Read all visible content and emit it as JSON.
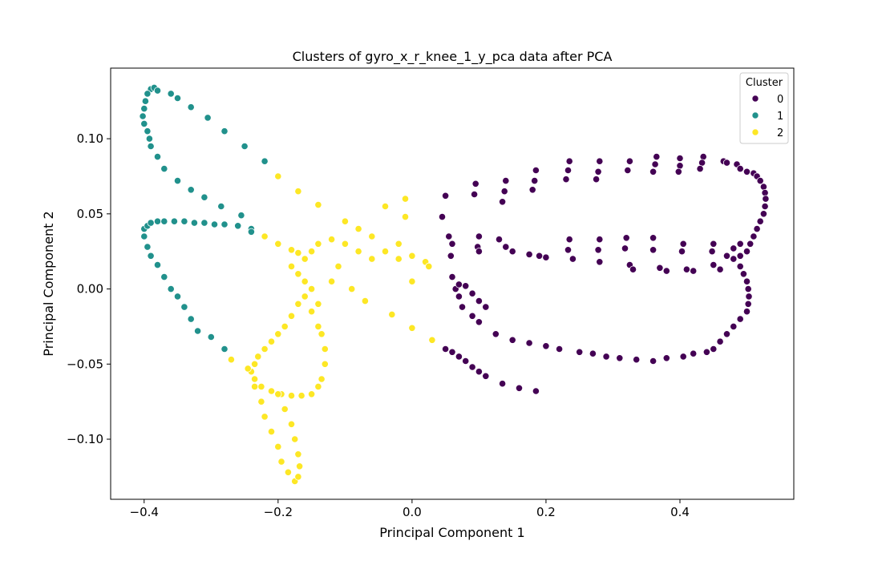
{
  "chart_data": {
    "type": "scatter",
    "title": "Clusters of gyro_x_r_knee_1_y_pca data after PCA",
    "xlabel": "Principal Component 1",
    "ylabel": "Principal Component 2",
    "xlim": [
      -0.45,
      0.57
    ],
    "ylim": [
      -0.14,
      0.147
    ],
    "xticks": [
      -0.4,
      -0.2,
      0.0,
      0.2,
      0.4
    ],
    "xtick_labels": [
      "−0.4",
      "−0.2",
      "0.0",
      "0.2",
      "0.4"
    ],
    "yticks": [
      -0.1,
      -0.05,
      0.0,
      0.05,
      0.1
    ],
    "ytick_labels": [
      "−0.10",
      "−0.05",
      "0.00",
      "0.05",
      "0.10"
    ],
    "grid": false,
    "legend": {
      "title": "Cluster",
      "placement": "top-right"
    },
    "series": [
      {
        "name": "0",
        "color": "#440154",
        "points": [
          [
            0.05,
            0.062
          ],
          [
            0.045,
            0.048
          ],
          [
            0.055,
            0.035
          ],
          [
            0.06,
            0.03
          ],
          [
            0.058,
            0.022
          ],
          [
            0.095,
            0.07
          ],
          [
            0.093,
            0.063
          ],
          [
            0.1,
            0.035
          ],
          [
            0.098,
            0.028
          ],
          [
            0.1,
            0.025
          ],
          [
            0.14,
            0.072
          ],
          [
            0.138,
            0.065
          ],
          [
            0.135,
            0.058
          ],
          [
            0.13,
            0.033
          ],
          [
            0.14,
            0.028
          ],
          [
            0.15,
            0.025
          ],
          [
            0.185,
            0.079
          ],
          [
            0.183,
            0.072
          ],
          [
            0.18,
            0.066
          ],
          [
            0.175,
            0.023
          ],
          [
            0.19,
            0.022
          ],
          [
            0.2,
            0.021
          ],
          [
            0.235,
            0.085
          ],
          [
            0.233,
            0.079
          ],
          [
            0.23,
            0.073
          ],
          [
            0.235,
            0.033
          ],
          [
            0.233,
            0.026
          ],
          [
            0.24,
            0.02
          ],
          [
            0.28,
            0.085
          ],
          [
            0.278,
            0.078
          ],
          [
            0.275,
            0.073
          ],
          [
            0.28,
            0.033
          ],
          [
            0.278,
            0.026
          ],
          [
            0.28,
            0.018
          ],
          [
            0.325,
            0.085
          ],
          [
            0.322,
            0.079
          ],
          [
            0.32,
            0.034
          ],
          [
            0.318,
            0.027
          ],
          [
            0.325,
            0.016
          ],
          [
            0.33,
            0.013
          ],
          [
            0.365,
            0.088
          ],
          [
            0.363,
            0.083
          ],
          [
            0.36,
            0.078
          ],
          [
            0.36,
            0.034
          ],
          [
            0.36,
            0.026
          ],
          [
            0.37,
            0.014
          ],
          [
            0.38,
            0.012
          ],
          [
            0.4,
            0.087
          ],
          [
            0.4,
            0.082
          ],
          [
            0.398,
            0.078
          ],
          [
            0.405,
            0.03
          ],
          [
            0.403,
            0.025
          ],
          [
            0.41,
            0.013
          ],
          [
            0.42,
            0.012
          ],
          [
            0.435,
            0.088
          ],
          [
            0.433,
            0.084
          ],
          [
            0.43,
            0.08
          ],
          [
            0.45,
            0.03
          ],
          [
            0.448,
            0.025
          ],
          [
            0.45,
            0.016
          ],
          [
            0.46,
            0.013
          ],
          [
            0.465,
            0.085
          ],
          [
            0.47,
            0.084
          ],
          [
            0.485,
            0.083
          ],
          [
            0.49,
            0.08
          ],
          [
            0.5,
            0.078
          ],
          [
            0.51,
            0.077
          ],
          [
            0.515,
            0.075
          ],
          [
            0.52,
            0.072
          ],
          [
            0.525,
            0.068
          ],
          [
            0.527,
            0.064
          ],
          [
            0.528,
            0.06
          ],
          [
            0.527,
            0.055
          ],
          [
            0.525,
            0.05
          ],
          [
            0.52,
            0.045
          ],
          [
            0.515,
            0.04
          ],
          [
            0.51,
            0.035
          ],
          [
            0.505,
            0.03
          ],
          [
            0.5,
            0.025
          ],
          [
            0.49,
            0.022
          ],
          [
            0.48,
            0.02
          ],
          [
            0.47,
            0.022
          ],
          [
            0.48,
            0.027
          ],
          [
            0.49,
            0.03
          ],
          [
            0.49,
            0.015
          ],
          [
            0.495,
            0.01
          ],
          [
            0.5,
            0.005
          ],
          [
            0.502,
            0.0
          ],
          [
            0.503,
            -0.005
          ],
          [
            0.502,
            -0.01
          ],
          [
            0.5,
            -0.015
          ],
          [
            0.49,
            -0.02
          ],
          [
            0.48,
            -0.025
          ],
          [
            0.47,
            -0.03
          ],
          [
            0.46,
            -0.035
          ],
          [
            0.45,
            -0.04
          ],
          [
            0.44,
            -0.042
          ],
          [
            0.42,
            -0.043
          ],
          [
            0.405,
            -0.045
          ],
          [
            0.38,
            -0.046
          ],
          [
            0.36,
            -0.048
          ],
          [
            0.335,
            -0.047
          ],
          [
            0.31,
            -0.046
          ],
          [
            0.29,
            -0.045
          ],
          [
            0.27,
            -0.043
          ],
          [
            0.25,
            -0.042
          ],
          [
            0.22,
            -0.04
          ],
          [
            0.2,
            -0.038
          ],
          [
            0.175,
            -0.036
          ],
          [
            0.15,
            -0.034
          ],
          [
            0.125,
            -0.03
          ],
          [
            0.1,
            -0.022
          ],
          [
            0.09,
            -0.018
          ],
          [
            0.075,
            -0.012
          ],
          [
            0.07,
            -0.005
          ],
          [
            0.065,
            0.0
          ],
          [
            0.07,
            0.003
          ],
          [
            0.08,
            0.002
          ],
          [
            0.09,
            -0.003
          ],
          [
            0.1,
            -0.008
          ],
          [
            0.11,
            -0.012
          ],
          [
            0.06,
            0.008
          ],
          [
            0.05,
            -0.04
          ],
          [
            0.06,
            -0.042
          ],
          [
            0.07,
            -0.045
          ],
          [
            0.08,
            -0.048
          ],
          [
            0.09,
            -0.052
          ],
          [
            0.1,
            -0.055
          ],
          [
            0.11,
            -0.058
          ],
          [
            0.135,
            -0.063
          ],
          [
            0.16,
            -0.066
          ],
          [
            0.185,
            -0.068
          ]
        ]
      },
      {
        "name": "1",
        "color": "#21918c",
        "points": [
          [
            -0.39,
            0.133
          ],
          [
            -0.385,
            0.134
          ],
          [
            -0.38,
            0.132
          ],
          [
            -0.36,
            0.13
          ],
          [
            -0.35,
            0.127
          ],
          [
            -0.33,
            0.121
          ],
          [
            -0.305,
            0.114
          ],
          [
            -0.28,
            0.105
          ],
          [
            -0.25,
            0.095
          ],
          [
            -0.22,
            0.085
          ],
          [
            -0.395,
            0.13
          ],
          [
            -0.398,
            0.125
          ],
          [
            -0.4,
            0.12
          ],
          [
            -0.402,
            0.115
          ],
          [
            -0.4,
            0.11
          ],
          [
            -0.395,
            0.105
          ],
          [
            -0.392,
            0.1
          ],
          [
            -0.39,
            0.095
          ],
          [
            -0.38,
            0.088
          ],
          [
            -0.37,
            0.08
          ],
          [
            -0.35,
            0.072
          ],
          [
            -0.33,
            0.066
          ],
          [
            -0.31,
            0.061
          ],
          [
            -0.285,
            0.055
          ],
          [
            -0.255,
            0.049
          ],
          [
            -0.4,
            0.04
          ],
          [
            -0.395,
            0.042
          ],
          [
            -0.39,
            0.044
          ],
          [
            -0.38,
            0.045
          ],
          [
            -0.37,
            0.045
          ],
          [
            -0.355,
            0.045
          ],
          [
            -0.34,
            0.045
          ],
          [
            -0.325,
            0.044
          ],
          [
            -0.31,
            0.044
          ],
          [
            -0.295,
            0.043
          ],
          [
            -0.28,
            0.043
          ],
          [
            -0.26,
            0.042
          ],
          [
            -0.24,
            0.04
          ],
          [
            -0.24,
            0.038
          ],
          [
            -0.4,
            0.035
          ],
          [
            -0.395,
            0.028
          ],
          [
            -0.39,
            0.022
          ],
          [
            -0.38,
            0.016
          ],
          [
            -0.37,
            0.008
          ],
          [
            -0.36,
            0.0
          ],
          [
            -0.35,
            -0.005
          ],
          [
            -0.34,
            -0.012
          ],
          [
            -0.33,
            -0.02
          ],
          [
            -0.32,
            -0.028
          ],
          [
            -0.3,
            -0.032
          ],
          [
            -0.28,
            -0.04
          ]
        ]
      },
      {
        "name": "2",
        "color": "#fde725",
        "points": [
          [
            -0.2,
            0.075
          ],
          [
            -0.17,
            0.065
          ],
          [
            -0.14,
            0.056
          ],
          [
            -0.1,
            0.045
          ],
          [
            -0.08,
            0.04
          ],
          [
            -0.06,
            0.035
          ],
          [
            -0.04,
            0.055
          ],
          [
            -0.01,
            0.06
          ],
          [
            -0.01,
            0.048
          ],
          [
            -0.02,
            0.03
          ],
          [
            0.0,
            0.022
          ],
          [
            0.02,
            0.018
          ],
          [
            0.025,
            0.015
          ],
          [
            -0.22,
            0.035
          ],
          [
            -0.2,
            0.03
          ],
          [
            -0.18,
            0.026
          ],
          [
            -0.17,
            0.024
          ],
          [
            -0.16,
            0.02
          ],
          [
            -0.15,
            0.025
          ],
          [
            -0.14,
            0.03
          ],
          [
            -0.12,
            0.033
          ],
          [
            -0.1,
            0.03
          ],
          [
            -0.08,
            0.025
          ],
          [
            -0.06,
            0.02
          ],
          [
            -0.04,
            0.025
          ],
          [
            -0.02,
            0.02
          ],
          [
            0.0,
            0.005
          ],
          [
            -0.18,
            0.015
          ],
          [
            -0.17,
            0.01
          ],
          [
            -0.16,
            0.005
          ],
          [
            -0.15,
            0.0
          ],
          [
            -0.16,
            -0.005
          ],
          [
            -0.17,
            -0.01
          ],
          [
            -0.18,
            -0.018
          ],
          [
            -0.19,
            -0.025
          ],
          [
            -0.2,
            -0.03
          ],
          [
            -0.21,
            -0.035
          ],
          [
            -0.22,
            -0.04
          ],
          [
            -0.23,
            -0.045
          ],
          [
            -0.235,
            -0.05
          ],
          [
            -0.24,
            -0.055
          ],
          [
            -0.235,
            -0.06
          ],
          [
            -0.225,
            -0.065
          ],
          [
            -0.21,
            -0.068
          ],
          [
            -0.195,
            -0.07
          ],
          [
            -0.18,
            -0.071
          ],
          [
            -0.165,
            -0.071
          ],
          [
            -0.15,
            -0.07
          ],
          [
            -0.14,
            -0.065
          ],
          [
            -0.135,
            -0.06
          ],
          [
            -0.13,
            -0.05
          ],
          [
            -0.13,
            -0.04
          ],
          [
            -0.135,
            -0.03
          ],
          [
            -0.14,
            -0.025
          ],
          [
            -0.15,
            -0.015
          ],
          [
            -0.14,
            -0.01
          ],
          [
            -0.12,
            0.005
          ],
          [
            -0.11,
            0.015
          ],
          [
            -0.09,
            0.0
          ],
          [
            -0.07,
            -0.008
          ],
          [
            -0.03,
            -0.017
          ],
          [
            0.0,
            -0.026
          ],
          [
            0.03,
            -0.034
          ],
          [
            -0.27,
            -0.047
          ],
          [
            -0.245,
            -0.053
          ],
          [
            -0.235,
            -0.065
          ],
          [
            -0.225,
            -0.075
          ],
          [
            -0.22,
            -0.085
          ],
          [
            -0.21,
            -0.095
          ],
          [
            -0.2,
            -0.105
          ],
          [
            -0.195,
            -0.115
          ],
          [
            -0.185,
            -0.122
          ],
          [
            -0.175,
            -0.128
          ],
          [
            -0.17,
            -0.125
          ],
          [
            -0.168,
            -0.118
          ],
          [
            -0.17,
            -0.11
          ],
          [
            -0.175,
            -0.1
          ],
          [
            -0.18,
            -0.09
          ],
          [
            -0.19,
            -0.08
          ],
          [
            -0.2,
            -0.07
          ]
        ]
      }
    ]
  }
}
